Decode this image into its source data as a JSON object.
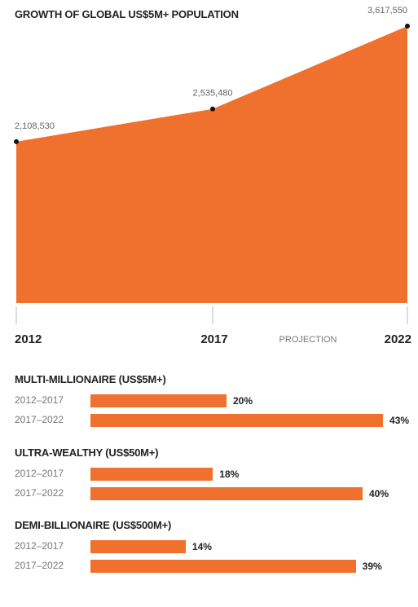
{
  "chart_data": [
    {
      "type": "area",
      "title": "GROWTH OF GLOBAL US$5M+ POPULATION",
      "x": [
        "2012",
        "2017",
        "2022"
      ],
      "values": [
        2108530,
        2535480,
        3617550
      ],
      "value_labels": [
        "2,108,530",
        "2,535,480",
        "3,617,550"
      ],
      "annotation": "PROJECTION",
      "ylim": [
        0,
        3617550
      ],
      "color": "#f0702d"
    },
    {
      "type": "bar",
      "orientation": "horizontal",
      "groups": [
        {
          "title": "MULTI-MILLIONAIRE (US$5M+)",
          "categories": [
            "2012–2017",
            "2017–2022"
          ],
          "values": [
            20,
            43
          ],
          "labels": [
            "20%",
            "43%"
          ]
        },
        {
          "title": "ULTRA-WEALTHY (US$50M+)",
          "categories": [
            "2012–2017",
            "2017–2022"
          ],
          "values": [
            18,
            40
          ],
          "labels": [
            "18%",
            "40%"
          ]
        },
        {
          "title": "DEMI-BILLIONAIRE (US$500M+)",
          "categories": [
            "2012–2017",
            "2017–2022"
          ],
          "values": [
            14,
            39
          ],
          "labels": [
            "14%",
            "39%"
          ]
        }
      ],
      "color": "#f0702d"
    }
  ]
}
